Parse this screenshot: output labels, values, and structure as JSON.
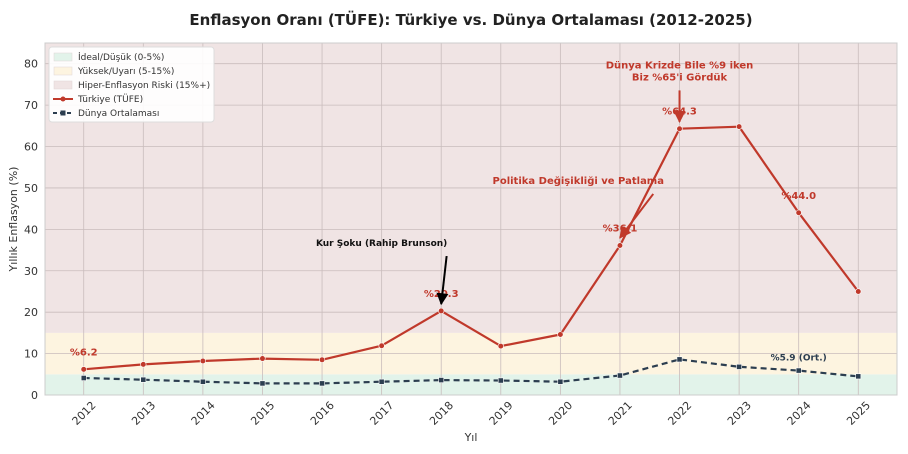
{
  "chart_data": {
    "type": "line",
    "title": "Enflasyon Oranı (TÜFE): Türkiye vs. Dünya Ortalaması (2012-2025)",
    "xlabel": "Yıl",
    "ylabel": "Yıllık Enflasyon (%)",
    "x": [
      2012,
      2013,
      2014,
      2015,
      2016,
      2017,
      2018,
      2019,
      2020,
      2021,
      2022,
      2023,
      2024,
      2025
    ],
    "x_tick_labels": [
      "2012",
      "2013",
      "2014",
      "2015",
      "2016",
      "2017",
      "2018",
      "2019",
      "2020",
      "2021",
      "2022",
      "2023",
      "2024",
      "2025"
    ],
    "ylim": [
      0,
      85
    ],
    "y_ticks": [
      0,
      10,
      20,
      30,
      40,
      50,
      60,
      70,
      80
    ],
    "grid": true,
    "legend_position": "top-left",
    "series": [
      {
        "name": "Türkiye (TÜFE)",
        "color": "#c0392b",
        "style": "solid",
        "marker": "circle",
        "values": [
          6.2,
          7.4,
          8.2,
          8.8,
          8.5,
          11.9,
          20.3,
          11.8,
          14.6,
          36.1,
          64.3,
          64.8,
          44.0,
          25.0
        ]
      },
      {
        "name": "Dünya Ortalaması",
        "color": "#2c3e50",
        "style": "dashed",
        "marker": "square",
        "values": [
          4.1,
          3.7,
          3.2,
          2.8,
          2.8,
          3.2,
          3.6,
          3.5,
          3.2,
          4.7,
          8.6,
          6.8,
          5.9,
          4.5
        ]
      }
    ],
    "bands": [
      {
        "label": "İdeal/Düşük (0-5%)",
        "from": 0,
        "to": 5,
        "color": "#e2f3ea"
      },
      {
        "label": "Yüksek/Uyarı (5-15%)",
        "from": 5,
        "to": 15,
        "color": "#fdf4e0"
      },
      {
        "label": "Hiper-Enflasyon Riski (15%+)",
        "from": 15,
        "to": 85,
        "color": "#f0e4e4"
      }
    ],
    "point_labels": [
      {
        "text": "%6.2",
        "year": 2012,
        "y": 6.2
      },
      {
        "text": "%20.3",
        "year": 2018,
        "y": 20.3
      },
      {
        "text": "%36.1",
        "year": 2021,
        "y": 36.1
      },
      {
        "text": "%64.3",
        "year": 2022,
        "y": 64.3
      },
      {
        "text": "%44.0",
        "year": 2024,
        "y": 44.0
      }
    ],
    "world_label": {
      "text": "%5.9 (Ort.)",
      "year": 2024,
      "y": 5.9
    },
    "annotations": [
      {
        "text_lines": [
          "Kur Şoku (Rahip Brunson)"
        ],
        "style": "dark",
        "text_year": 2017.0,
        "text_y": 35,
        "target_year": 2018.0,
        "target_y": 21
      },
      {
        "text_lines": [
          "Politika Değişikliği ve Patlama"
        ],
        "style": "red",
        "text_year": 2020.3,
        "text_y": 50,
        "target_year": 2021.0,
        "target_y": 37
      },
      {
        "text_lines": [
          "Dünya Krizde Bile %9 iken",
          "Biz %65'i Gördük"
        ],
        "style": "red",
        "text_year": 2022.0,
        "text_y": 75,
        "target_year": 2022.0,
        "target_y": 65
      }
    ]
  }
}
